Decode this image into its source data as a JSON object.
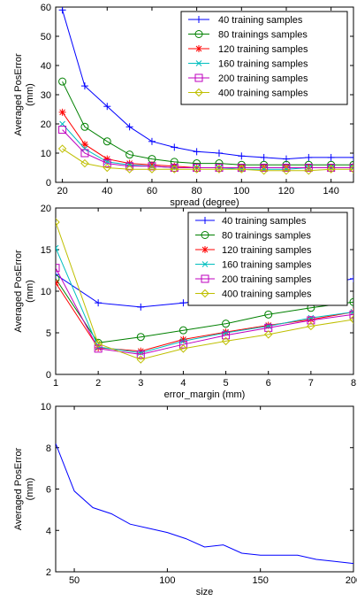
{
  "chart_data": [
    {
      "type": "line",
      "title": "",
      "xlabel": "spread (degree)",
      "ylabel": [
        "Averaged PosError",
        "(mm)"
      ],
      "xlim": [
        17,
        150
      ],
      "ylim": [
        0,
        60
      ],
      "xticks": [
        20,
        40,
        60,
        80,
        100,
        120,
        140
      ],
      "yticks": [
        0,
        10,
        20,
        30,
        40,
        50,
        60
      ],
      "grid": false,
      "legend_position": "top-right",
      "x": [
        20,
        30,
        40,
        50,
        60,
        70,
        80,
        90,
        100,
        110,
        120,
        130,
        140,
        150
      ],
      "series": [
        {
          "name": "40 training samples",
          "color": "#0000ff",
          "marker": "plus",
          "values": [
            59,
            33,
            26,
            19,
            14,
            12,
            10.5,
            10,
            9,
            8.5,
            8,
            8.5,
            8.5,
            8.5
          ]
        },
        {
          "name": "80 trainings samples",
          "color": "#008000",
          "marker": "circle",
          "values": [
            34.5,
            19,
            14,
            9.5,
            8,
            7,
            6.5,
            6.5,
            6,
            6,
            6,
            6,
            6,
            6
          ]
        },
        {
          "name": "120 training samples",
          "color": "#ff0000",
          "marker": "star",
          "values": [
            24,
            13,
            8,
            6.5,
            6,
            5.5,
            5,
            5,
            5,
            5,
            5,
            5,
            5,
            5
          ]
        },
        {
          "name": "160 training samples",
          "color": "#00bfbf",
          "marker": "x",
          "values": [
            20,
            11.5,
            7,
            6,
            5.5,
            5,
            5,
            5,
            4.5,
            4.5,
            4.5,
            5,
            5,
            5
          ]
        },
        {
          "name": "200 training samples",
          "color": "#bf00bf",
          "marker": "square",
          "values": [
            18,
            10,
            6.5,
            5.5,
            5.5,
            5,
            5,
            5,
            5,
            5,
            5,
            5,
            5,
            5
          ]
        },
        {
          "name": "400 training samples",
          "color": "#bfbf00",
          "marker": "diamond",
          "values": [
            11.5,
            6.5,
            5,
            4.5,
            4.5,
            4.5,
            4.5,
            4.5,
            4.5,
            4,
            4,
            4,
            4.5,
            4.5
          ]
        }
      ]
    },
    {
      "type": "line",
      "title": "",
      "xlabel": "error_margin (mm)",
      "ylabel": [
        "Averaged PosError",
        "(mm)"
      ],
      "xlim": [
        1,
        8
      ],
      "ylim": [
        0,
        20
      ],
      "xticks": [
        1,
        2,
        3,
        4,
        5,
        6,
        7,
        8
      ],
      "yticks": [
        0,
        5,
        10,
        15,
        20
      ],
      "grid": false,
      "legend_position": "top-right",
      "x": [
        1,
        2,
        3,
        4,
        5,
        6,
        7,
        8
      ],
      "series": [
        {
          "name": "40 training samples",
          "color": "#0000ff",
          "marker": "plus",
          "values": [
            12,
            8.6,
            8.1,
            8.6,
            9.2,
            9.8,
            10.6,
            11.5
          ]
        },
        {
          "name": "80 trainings samples",
          "color": "#008000",
          "marker": "circle",
          "values": [
            11.5,
            3.8,
            4.5,
            5.3,
            6.1,
            7.2,
            8,
            8.7
          ]
        },
        {
          "name": "120 training samples",
          "color": "#ff0000",
          "marker": "star",
          "values": [
            11,
            3.2,
            2.8,
            4.2,
            5.1,
            5.9,
            6.6,
            7.5
          ]
        },
        {
          "name": "160 training samples",
          "color": "#00bfbf",
          "marker": "x",
          "values": [
            15.2,
            3.3,
            2.6,
            4,
            5,
            5.8,
            6.8,
            7.5
          ]
        },
        {
          "name": "200 training samples",
          "color": "#bf00bf",
          "marker": "square",
          "values": [
            12.8,
            3.1,
            2.4,
            3.6,
            4.7,
            5.6,
            6.5,
            7.2
          ]
        },
        {
          "name": "400 training samples",
          "color": "#bfbf00",
          "marker": "diamond",
          "values": [
            18.3,
            3.7,
            1.8,
            3.1,
            4,
            4.8,
            5.8,
            6.6
          ]
        }
      ]
    },
    {
      "type": "line",
      "title": "",
      "xlabel": "size",
      "ylabel": [
        "Averaged PosError",
        "(mm)"
      ],
      "xlim": [
        40,
        200
      ],
      "ylim": [
        2,
        10
      ],
      "xticks": [
        50,
        100,
        150,
        200
      ],
      "yticks": [
        2,
        4,
        6,
        8,
        10
      ],
      "grid": false,
      "legend_position": "none",
      "series": [
        {
          "name": "",
          "color": "#0000ff",
          "marker": "none",
          "x": [
            40,
            50,
            60,
            70,
            80,
            90,
            100,
            110,
            120,
            130,
            140,
            150,
            160,
            170,
            180,
            190,
            200
          ],
          "values": [
            8.2,
            5.9,
            5.1,
            4.8,
            4.3,
            4.1,
            3.9,
            3.6,
            3.2,
            3.3,
            2.9,
            2.8,
            2.8,
            2.8,
            2.6,
            2.5,
            2.4
          ]
        }
      ]
    }
  ]
}
